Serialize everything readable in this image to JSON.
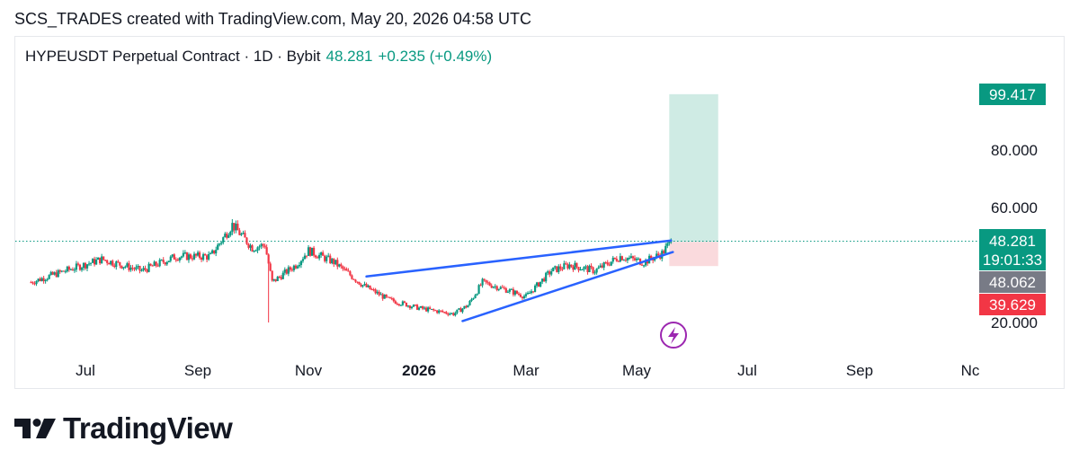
{
  "caption": "SCS_TRADES created with TradingView.com, May 20, 2026 04:58 UTC",
  "legend": {
    "symbol": "HYPEUSDT Perpetual Contract · 1D · Bybit",
    "last": "48.281",
    "change": "+0.235 (+0.49%)"
  },
  "brand": {
    "name": "TradingView"
  },
  "colors": {
    "up": "#089981",
    "down": "#f23645",
    "trendline": "#2962ff",
    "profit_zone": "#cfebe4",
    "loss_zone": "#fadadd",
    "grey_tag": "#787b86",
    "red_tag": "#f23645"
  },
  "chart_data": {
    "type": "candlestick",
    "title": "HYPEUSDT Perpetual Contract · 1D · Bybit",
    "x_tick_labels": [
      "Jul",
      "Sep",
      "Nov",
      "2026",
      "Mar",
      "May",
      "Jul",
      "Sep",
      "Nc"
    ],
    "y_tick_labels": [
      "20.000",
      "60.000",
      "80.000"
    ],
    "ylim": [
      14,
      103
    ],
    "price_tags": {
      "target": "99.417",
      "current": "48.281",
      "countdown": "19:01:33",
      "entry": "48.062",
      "stop": "39.629"
    },
    "anchors": [
      [
        "2025-06-01",
        34
      ],
      [
        "2025-06-20",
        38
      ],
      [
        "2025-07-10",
        42
      ],
      [
        "2025-08-01",
        38
      ],
      [
        "2025-08-20",
        43
      ],
      [
        "2025-09-08",
        43
      ],
      [
        "2025-09-20",
        54
      ],
      [
        "2025-10-01",
        46
      ],
      [
        "2025-10-08",
        47
      ],
      [
        "2025-10-12",
        34
      ],
      [
        "2025-10-25",
        40
      ],
      [
        "2025-11-01",
        45
      ],
      [
        "2025-11-15",
        41
      ],
      [
        "2025-12-01",
        33
      ],
      [
        "2025-12-15",
        28
      ],
      [
        "2026-01-01",
        25
      ],
      [
        "2026-01-20",
        23
      ],
      [
        "2026-01-28",
        26
      ],
      [
        "2026-02-05",
        34
      ],
      [
        "2026-02-20",
        31
      ],
      [
        "2026-03-01",
        29
      ],
      [
        "2026-03-15",
        38
      ],
      [
        "2026-03-25",
        40
      ],
      [
        "2026-04-08",
        38
      ],
      [
        "2026-04-22",
        43
      ],
      [
        "2026-05-05",
        41
      ],
      [
        "2026-05-15",
        44
      ],
      [
        "2026-05-20",
        48.3
      ]
    ],
    "spikes": [
      {
        "date": "2025-10-10",
        "low": 20
      }
    ],
    "trendlines": [
      {
        "from": [
          "2025-12-03",
          36
        ],
        "to": [
          "2026-05-20",
          48.5
        ]
      },
      {
        "from": [
          "2026-01-25",
          20.5
        ],
        "to": [
          "2026-05-21",
          44.5
        ]
      }
    ],
    "position": {
      "start": "2026-05-20",
      "end": "2026-06-15",
      "entry": 48.062,
      "target": 99.417,
      "stop": 39.629
    }
  }
}
